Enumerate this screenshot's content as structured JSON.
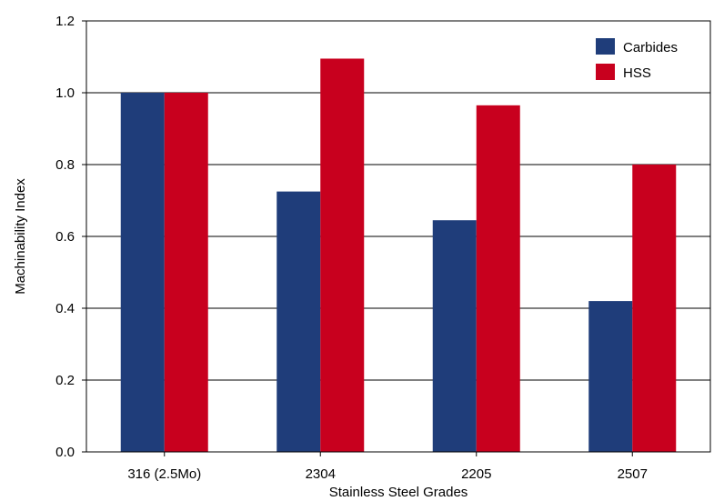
{
  "chart_data": {
    "type": "bar",
    "xlabel": "Stainless Steel Grades",
    "ylabel": "Machinability Index",
    "categories": [
      "316 (2.5Mo)",
      "2304",
      "2205",
      "2507"
    ],
    "series": [
      {
        "name": "Carbides",
        "color": "#1f3d7a",
        "values": [
          1.0,
          0.725,
          0.645,
          0.42
        ]
      },
      {
        "name": "HSS",
        "color": "#c8001e",
        "values": [
          1.0,
          1.095,
          0.965,
          0.8
        ]
      }
    ],
    "ylim": [
      0,
      1.2
    ],
    "yticks": [
      0.0,
      0.2,
      0.4,
      0.6,
      0.8,
      1.0,
      1.2
    ],
    "ytick_labels": [
      "0.0",
      "0.2",
      "0.4",
      "0.6",
      "0.8",
      "1.0",
      "1.2"
    ],
    "grid": true,
    "legend_position": "top-right"
  }
}
